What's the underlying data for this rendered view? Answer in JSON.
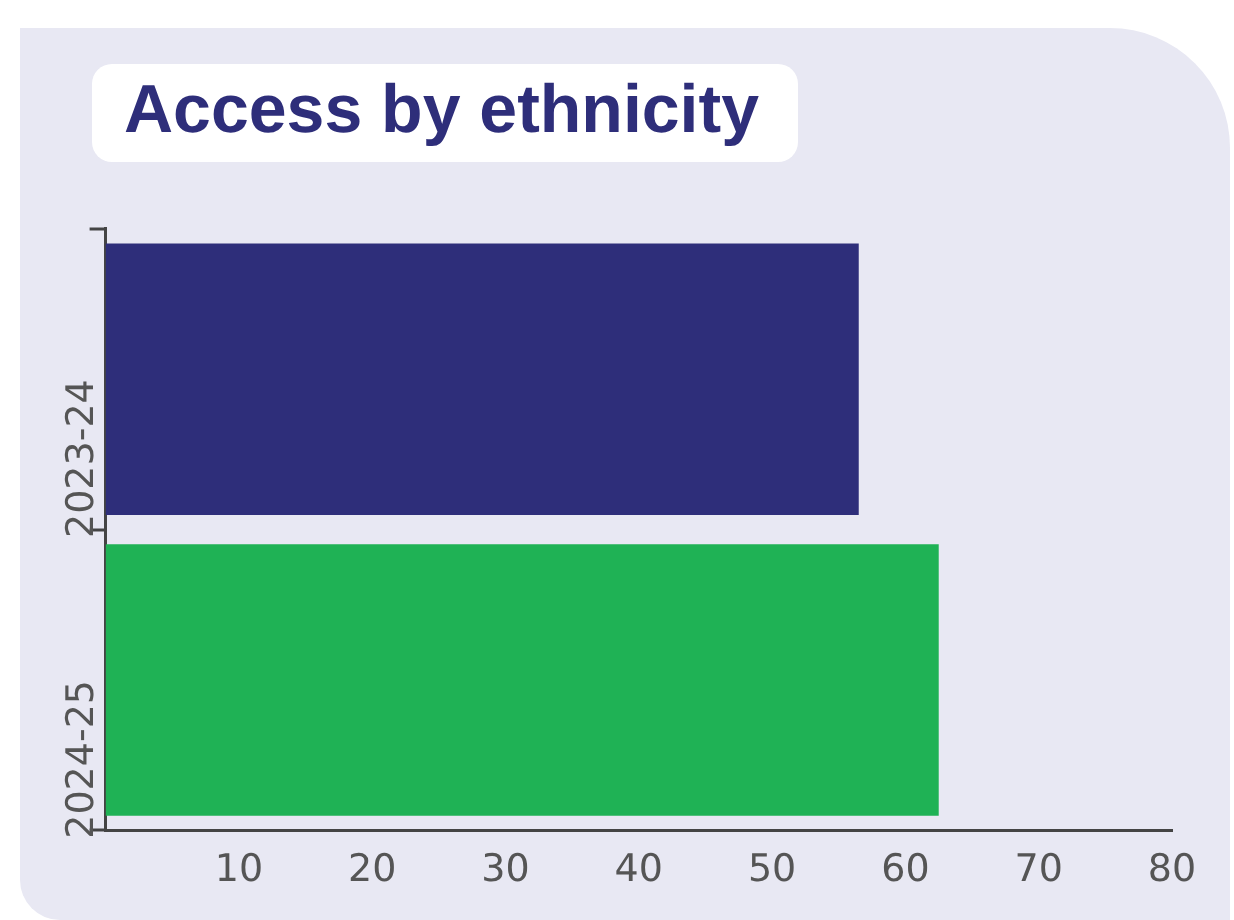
{
  "chart_data": {
    "type": "bar",
    "orientation": "horizontal",
    "title": "Access by ethnicity",
    "categories": [
      "2023-24",
      "2024-25"
    ],
    "values": [
      56.5,
      62.5
    ],
    "colors": [
      "#2e2e7a",
      "#1fb255"
    ],
    "xlim": [
      0,
      80
    ],
    "xticks": [
      10,
      20,
      30,
      40,
      50,
      60,
      70,
      80
    ],
    "grid": false,
    "legend": false
  }
}
